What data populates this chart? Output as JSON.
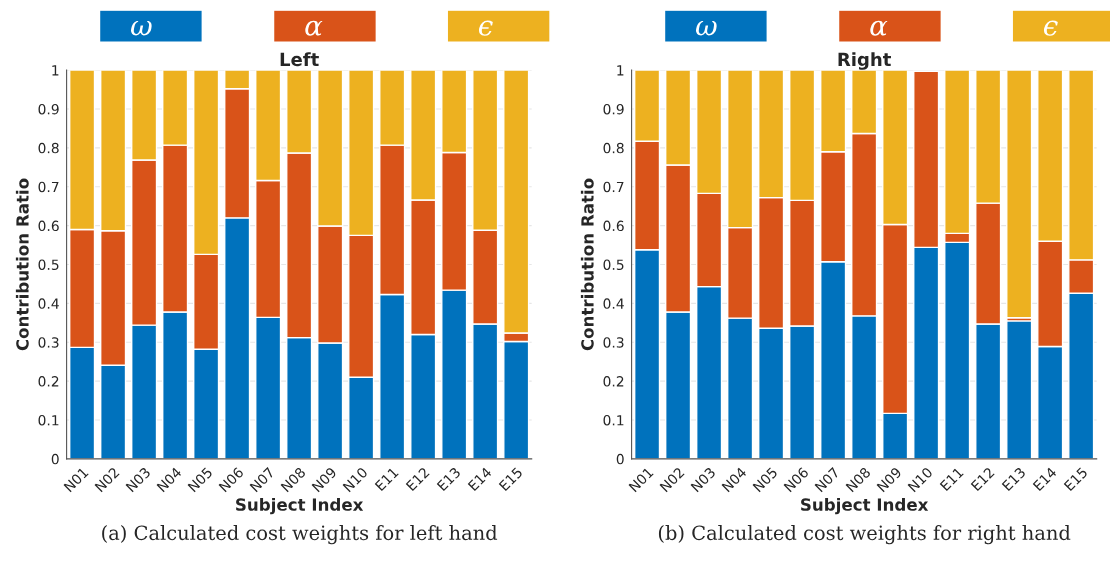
{
  "chart_data": [
    {
      "type": "bar",
      "stacked": true,
      "title": "Left",
      "xlabel": "Subject Index",
      "ylabel": "Contribution Ratio",
      "categories": [
        "N01",
        "N02",
        "N03",
        "N04",
        "N05",
        "N06",
        "N07",
        "N08",
        "N09",
        "N10",
        "E11",
        "E12",
        "E13",
        "E14",
        "E15"
      ],
      "series": [
        {
          "name": "ω",
          "color": "#0072bd",
          "values": [
            0.287,
            0.241,
            0.344,
            0.378,
            0.282,
            0.62,
            0.364,
            0.312,
            0.298,
            0.21,
            0.423,
            0.32,
            0.434,
            0.347,
            0.302
          ]
        },
        {
          "name": "α",
          "color": "#d95319",
          "values": [
            0.303,
            0.346,
            0.425,
            0.429,
            0.244,
            0.332,
            0.352,
            0.475,
            0.301,
            0.365,
            0.384,
            0.346,
            0.354,
            0.241,
            0.022
          ]
        },
        {
          "name": "ϵ",
          "color": "#edb120",
          "values": [
            0.41,
            0.413,
            0.231,
            0.193,
            0.474,
            0.048,
            0.284,
            0.213,
            0.401,
            0.425,
            0.193,
            0.334,
            0.212,
            0.412,
            0.676
          ]
        }
      ],
      "ylim": [
        0,
        1
      ],
      "yticks": [
        0,
        0.1,
        0.2,
        0.3,
        0.4,
        0.5,
        0.6,
        0.7,
        0.8,
        0.9,
        1
      ],
      "grid": "y",
      "legend": "top",
      "annotations": [
        "(a) Calculated cost weights for left hand"
      ]
    },
    {
      "type": "bar",
      "stacked": true,
      "title": "Right",
      "xlabel": "Subject Index",
      "ylabel": "Contribution Ratio",
      "categories": [
        "N01",
        "N02",
        "N03",
        "N04",
        "N05",
        "N06",
        "N07",
        "N08",
        "N09",
        "N10",
        "E11",
        "E12",
        "E13",
        "E14",
        "E15"
      ],
      "series": [
        {
          "name": "ω",
          "color": "#0072bd",
          "values": [
            0.538,
            0.378,
            0.443,
            0.362,
            0.336,
            0.342,
            0.507,
            0.368,
            0.117,
            0.544,
            0.557,
            0.347,
            0.355,
            0.289,
            0.426
          ]
        },
        {
          "name": "α",
          "color": "#d95319",
          "values": [
            0.279,
            0.378,
            0.24,
            0.233,
            0.336,
            0.323,
            0.283,
            0.469,
            0.486,
            0.453,
            0.023,
            0.311,
            0.008,
            0.271,
            0.086
          ]
        },
        {
          "name": "ϵ",
          "color": "#edb120",
          "values": [
            0.183,
            0.244,
            0.317,
            0.405,
            0.328,
            0.335,
            0.21,
            0.163,
            0.397,
            null,
            0.42,
            0.342,
            0.637,
            0.44,
            0.488
          ]
        }
      ],
      "ylim": [
        0,
        1
      ],
      "yticks": [
        0,
        0.1,
        0.2,
        0.3,
        0.4,
        0.5,
        0.6,
        0.7,
        0.8,
        0.9,
        1
      ],
      "grid": "y",
      "legend": "top",
      "annotations": [
        "(b) Calculated cost weights for right hand"
      ]
    }
  ]
}
